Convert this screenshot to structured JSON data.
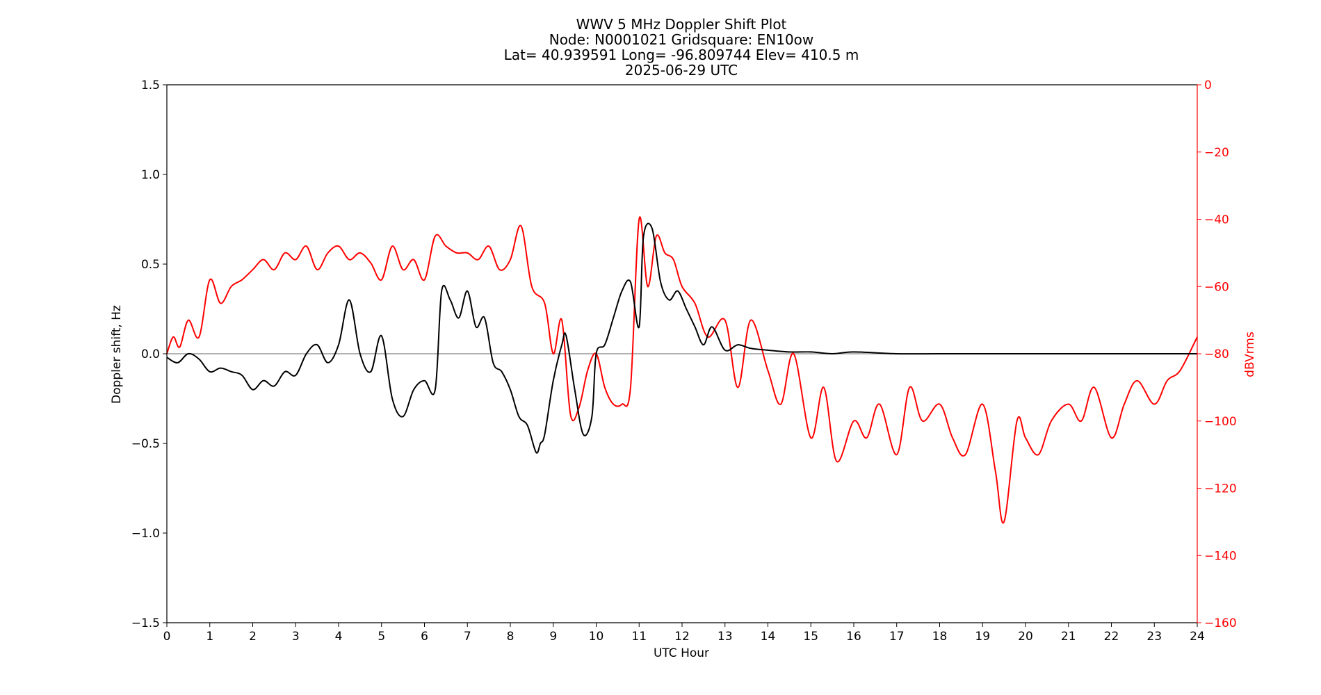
{
  "chart_data": {
    "type": "line",
    "title": {
      "line1": "WWV 5 MHz Doppler Shift Plot",
      "line2": "Node:  N0001021     Gridsquare:  EN10ow",
      "line3": "Lat= 40.939591    Long= -96.809744    Elev= 410.5 m",
      "line4": "2025-06-29  UTC"
    },
    "xlabel": "UTC Hour",
    "ylabel_left": "Doppler shift, Hz",
    "ylabel_right": "dBVrms",
    "xlim": [
      0,
      24
    ],
    "ylim_left": [
      -1.5,
      1.5
    ],
    "ylim_right": [
      -160,
      0
    ],
    "x_ticks": [
      "0",
      "1",
      "2",
      "3",
      "4",
      "5",
      "6",
      "7",
      "8",
      "9",
      "10",
      "11",
      "12",
      "13",
      "14",
      "15",
      "16",
      "17",
      "18",
      "19",
      "20",
      "21",
      "22",
      "23",
      "24"
    ],
    "y_left_ticks": [
      "1.5",
      "1.0",
      "0.5",
      "0.0",
      "−0.5",
      "−1.0",
      "−1.5"
    ],
    "y_right_ticks": [
      "0",
      "−20",
      "−40",
      "−60",
      "−80",
      "−100",
      "−120",
      "−140",
      "−160"
    ],
    "zero_line": true,
    "grid": false,
    "colors": {
      "doppler": "#000000",
      "power": "#ff0000",
      "zero_line": "#999999"
    },
    "series": [
      {
        "axis": "left",
        "color": "#000000",
        "x": [
          0,
          0.25,
          0.5,
          0.75,
          1,
          1.25,
          1.5,
          1.75,
          2,
          2.25,
          2.5,
          2.75,
          3,
          3.25,
          3.5,
          3.75,
          4,
          4.25,
          4.5,
          4.75,
          5,
          5.25,
          5.5,
          5.75,
          6,
          6.25,
          6.4,
          6.6,
          6.8,
          7,
          7.2,
          7.4,
          7.6,
          7.8,
          8,
          8.2,
          8.4,
          8.6,
          8.7,
          8.8,
          9,
          9.2,
          9.3,
          9.5,
          9.7,
          9.9,
          10,
          10.2,
          10.4,
          10.6,
          10.8,
          11,
          11.1,
          11.3,
          11.5,
          11.7,
          11.9,
          12.1,
          12.3,
          12.5,
          12.7,
          13,
          13.3,
          13.6,
          14,
          14.5,
          15,
          15.5,
          16,
          17,
          18,
          19,
          20,
          21,
          22,
          23,
          24
        ],
        "values": [
          -0.02,
          -0.05,
          0.0,
          -0.03,
          -0.1,
          -0.08,
          -0.1,
          -0.12,
          -0.2,
          -0.15,
          -0.18,
          -0.1,
          -0.12,
          0.0,
          0.05,
          -0.05,
          0.05,
          0.3,
          0.0,
          -0.1,
          0.1,
          -0.25,
          -0.35,
          -0.2,
          -0.15,
          -0.2,
          0.35,
          0.3,
          0.2,
          0.35,
          0.15,
          0.2,
          -0.05,
          -0.1,
          -0.2,
          -0.35,
          -0.4,
          -0.55,
          -0.5,
          -0.45,
          -0.15,
          0.05,
          0.1,
          -0.2,
          -0.45,
          -0.35,
          0.0,
          0.05,
          0.2,
          0.35,
          0.4,
          0.15,
          0.65,
          0.7,
          0.4,
          0.3,
          0.35,
          0.25,
          0.15,
          0.05,
          0.15,
          0.02,
          0.05,
          0.03,
          0.02,
          0.01,
          0.01,
          0.0,
          0.01,
          0.0,
          0.0,
          0.0,
          0.0,
          0.0,
          0.0,
          0.0,
          0.0
        ]
      },
      {
        "axis": "right",
        "color": "#ff0000",
        "x": [
          0,
          0.15,
          0.3,
          0.5,
          0.75,
          1,
          1.25,
          1.5,
          1.75,
          2,
          2.25,
          2.5,
          2.75,
          3,
          3.25,
          3.5,
          3.75,
          4,
          4.25,
          4.5,
          4.75,
          5,
          5.25,
          5.5,
          5.75,
          6,
          6.25,
          6.5,
          6.75,
          7,
          7.25,
          7.5,
          7.75,
          8,
          8.25,
          8.5,
          8.8,
          9,
          9.2,
          9.4,
          9.6,
          9.8,
          10,
          10.2,
          10.4,
          10.6,
          10.8,
          11,
          11.2,
          11.4,
          11.6,
          11.8,
          12,
          12.3,
          12.6,
          13,
          13.3,
          13.6,
          14,
          14.3,
          14.6,
          15,
          15.3,
          15.6,
          16,
          16.3,
          16.6,
          17,
          17.3,
          17.6,
          18,
          18.3,
          18.6,
          19,
          19.3,
          19.5,
          19.8,
          20,
          20.3,
          20.6,
          21,
          21.3,
          21.6,
          22,
          22.3,
          22.6,
          23,
          23.3,
          23.6,
          24
        ],
        "values": [
          -80,
          -75,
          -78,
          -70,
          -75,
          -58,
          -65,
          -60,
          -58,
          -55,
          -52,
          -55,
          -50,
          -52,
          -48,
          -55,
          -50,
          -48,
          -52,
          -50,
          -53,
          -58,
          -48,
          -55,
          -52,
          -58,
          -45,
          -48,
          -50,
          -50,
          -52,
          -48,
          -55,
          -52,
          -42,
          -60,
          -65,
          -80,
          -70,
          -98,
          -96,
          -85,
          -80,
          -90,
          -95,
          -95,
          -90,
          -40,
          -60,
          -45,
          -50,
          -52,
          -60,
          -65,
          -75,
          -70,
          -90,
          -70,
          -85,
          -95,
          -80,
          -105,
          -90,
          -112,
          -100,
          -105,
          -95,
          -110,
          -90,
          -100,
          -95,
          -105,
          -110,
          -95,
          -115,
          -130,
          -100,
          -105,
          -110,
          -100,
          -95,
          -100,
          -90,
          -105,
          -95,
          -88,
          -95,
          -88,
          -85,
          -75
        ]
      }
    ]
  }
}
